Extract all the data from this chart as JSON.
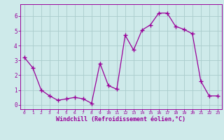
{
  "x": [
    0,
    1,
    2,
    3,
    4,
    5,
    6,
    7,
    8,
    9,
    10,
    11,
    12,
    13,
    14,
    15,
    16,
    17,
    18,
    19,
    20,
    21,
    22,
    23
  ],
  "y": [
    3.2,
    2.5,
    1.0,
    0.6,
    0.3,
    0.4,
    0.5,
    0.4,
    0.1,
    2.8,
    1.3,
    1.05,
    4.7,
    3.7,
    5.05,
    5.4,
    6.2,
    6.2,
    5.3,
    5.1,
    4.8,
    1.6,
    0.6,
    0.6
  ],
  "line_color": "#990099",
  "marker_color": "#990099",
  "bg_color": "#ceeaea",
  "grid_color": "#aacccc",
  "xlabel": "Windchill (Refroidissement éolien,°C)",
  "xlabel_color": "#990099",
  "ylim": [
    -0.3,
    6.8
  ],
  "xlim": [
    -0.5,
    23.5
  ],
  "yticks": [
    0,
    1,
    2,
    3,
    4,
    5,
    6
  ],
  "xticks": [
    0,
    1,
    2,
    3,
    4,
    5,
    6,
    7,
    8,
    9,
    10,
    11,
    12,
    13,
    14,
    15,
    16,
    17,
    18,
    19,
    20,
    21,
    22,
    23
  ],
  "tick_color": "#990099",
  "tick_label_color": "#990099",
  "spine_color": "#990099"
}
